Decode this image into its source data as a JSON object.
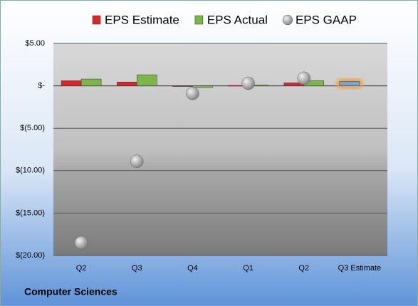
{
  "chart_data": {
    "type": "bar",
    "title": "Computer Sciences",
    "categories": [
      "Q2",
      "Q3",
      "Q4",
      "Q1",
      "Q2",
      "Q3 Estimate"
    ],
    "series": [
      {
        "name": "EPS Estimate",
        "type": "bar",
        "color": "#d9262b",
        "colors": [
          "#d9262b",
          "#d9262b",
          "#d9262b",
          "#d9262b",
          "#d9262b",
          "#6fa8dc"
        ],
        "values": [
          0.6,
          0.45,
          -0.05,
          0.05,
          0.35,
          0.5
        ]
      },
      {
        "name": "EPS Actual",
        "type": "bar",
        "color": "#7ab648",
        "values": [
          0.8,
          1.3,
          -0.2,
          0.1,
          0.6,
          null
        ]
      },
      {
        "name": "EPS GAAP",
        "type": "scatter",
        "color": "#a6a6a6",
        "values": [
          -18.5,
          -8.9,
          -0.9,
          0.3,
          0.9,
          null
        ]
      }
    ],
    "ylim": [
      -20,
      5
    ],
    "yticks": [
      {
        "value": -20,
        "label": "$(20.00)"
      },
      {
        "value": -15,
        "label": "$(15.00)"
      },
      {
        "value": -10,
        "label": "$(10.00)"
      },
      {
        "value": -5,
        "label": "$(5.00)"
      },
      {
        "value": 0,
        "label": "$-"
      },
      {
        "value": 5,
        "label": "$5.00"
      }
    ],
    "grid": true,
    "legend": "top"
  }
}
